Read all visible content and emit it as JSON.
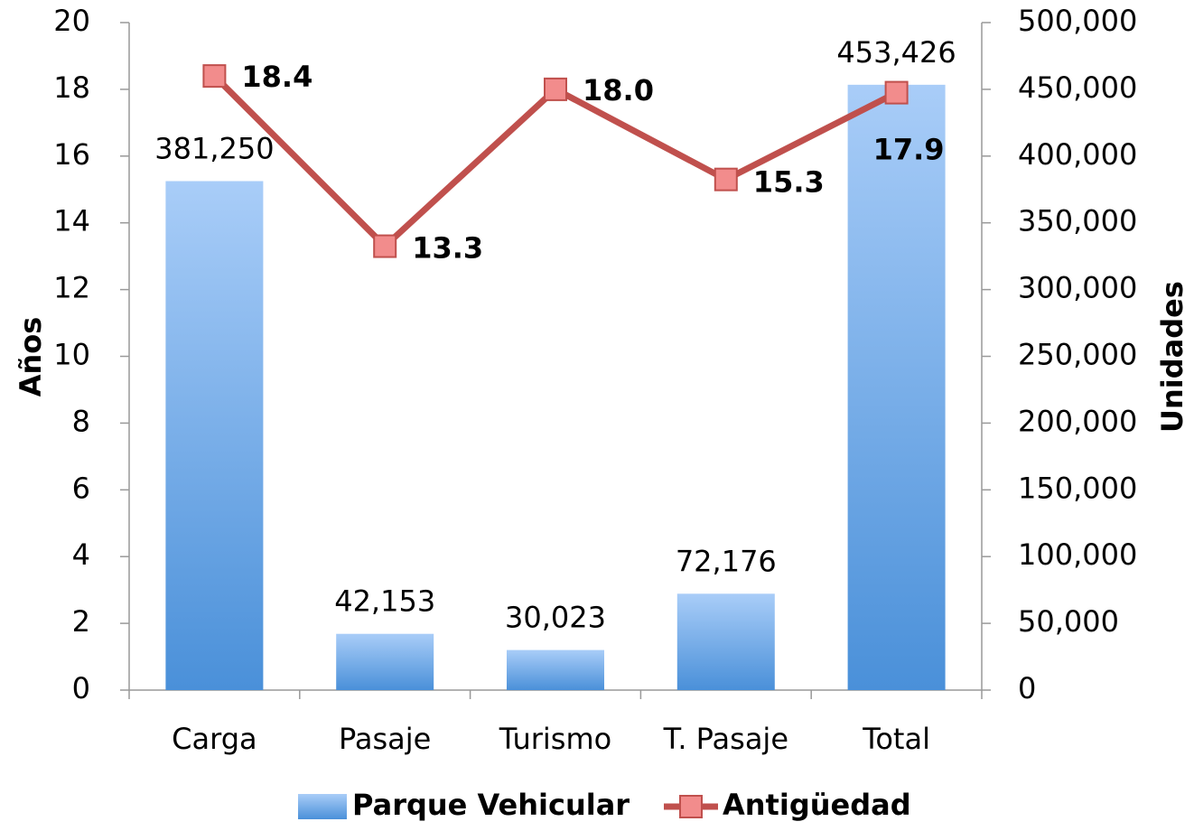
{
  "chart_data": {
    "type": "bar",
    "categories": [
      "Carga",
      "Pasaje",
      "Turismo",
      "T. Pasaje",
      "Total"
    ],
    "series": [
      {
        "name": "Parque Vehicular",
        "type": "bar",
        "axis": "y2",
        "color": "#5b9bd5",
        "values": [
          381250,
          42153,
          30023,
          72176,
          453426
        ],
        "value_labels": [
          "381,250",
          "42,153",
          "30,023",
          "72,176",
          "453,426"
        ]
      },
      {
        "name": "Antigüedad",
        "type": "line",
        "axis": "y",
        "color": "#c0504d",
        "values": [
          18.4,
          13.3,
          18.0,
          15.3,
          17.9
        ],
        "value_labels": [
          "18.4",
          "13.3",
          "18.0",
          "15.3",
          "17.9"
        ]
      }
    ],
    "ylabel": "Años",
    "y2label": "Unidades",
    "ylim": [
      0,
      20
    ],
    "yticks": [
      0,
      2,
      4,
      6,
      8,
      10,
      12,
      14,
      16,
      18,
      20
    ],
    "y2lim": [
      0,
      500000
    ],
    "y2ticks": [
      0,
      {
        "value": 50000,
        "label": "50,000"
      },
      {
        "value": 100000,
        "label": "100,000"
      },
      {
        "value": 150000,
        "label": "150,000"
      },
      {
        "value": 200000,
        "label": "200,000"
      },
      {
        "value": 250000,
        "label": "250,000"
      },
      {
        "value": 300000,
        "label": "300,000"
      },
      {
        "value": 350000,
        "label": "350,000"
      },
      {
        "value": 400000,
        "label": "400,000"
      },
      {
        "value": 450000,
        "label": "450,000"
      },
      {
        "value": 500000,
        "label": "500,000"
      }
    ],
    "legend": "bottom",
    "grid": false
  }
}
